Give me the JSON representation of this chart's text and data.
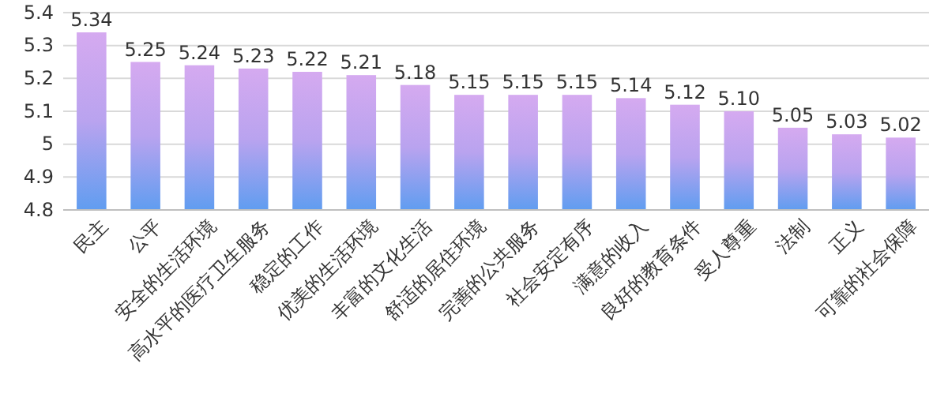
{
  "chart_data": {
    "type": "bar",
    "categories": [
      "民主",
      "公平",
      "安全的生活环境",
      "高水平的医疗卫生服务",
      "稳定的工作",
      "优美的生活环境",
      "丰富的文化生活",
      "舒适的居住环境",
      "完善的公共服务",
      "社会安定有序",
      "满意的收入",
      "良好的教育条件",
      "受人尊重",
      "法制",
      "正义",
      "可靠的社会保障"
    ],
    "values": [
      5.34,
      5.25,
      5.24,
      5.23,
      5.22,
      5.21,
      5.18,
      5.15,
      5.15,
      5.15,
      5.14,
      5.12,
      5.1,
      5.05,
      5.03,
      5.02
    ],
    "value_labels": [
      "5.34",
      "5.25",
      "5.24",
      "5.23",
      "5.22",
      "5.21",
      "5.18",
      "5.15",
      "5.15",
      "5.15",
      "5.14",
      "5.12",
      "5.10",
      "5.05",
      "5.03",
      "5.02"
    ],
    "color": "#b9a3ef",
    "ylim": [
      4.8,
      5.4
    ],
    "yticks": [
      4.8,
      4.9,
      {
        "value": 5,
        "label": "5"
      },
      5.1,
      5.2,
      5.3,
      5.4
    ],
    "grid": true
  }
}
